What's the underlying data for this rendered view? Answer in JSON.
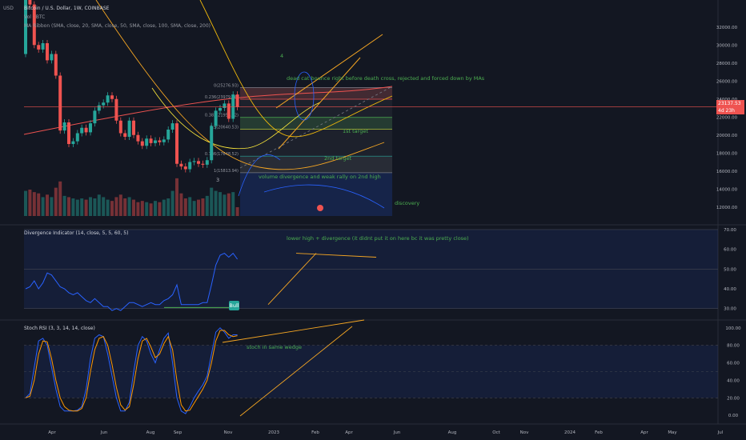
{
  "header": {
    "symbol_line": "Bitcoin / U.S. Dollar, 1W, COINBASE",
    "vol_line": "Vol · BTC",
    "ma_line": "MA Ribbon (SMA, close, 20, SMA, close, 50, SMA, close, 100, SMA, close, 200)",
    "currency": "USD"
  },
  "price_tag": {
    "price": "23137.53",
    "countdown": "4d 23h"
  },
  "annotations": {
    "wave_4": "4",
    "wave_3": "3",
    "dead_cat": "dead cat bounce right before death cross, rejected and forced down by MAs",
    "first_target": "1st target",
    "second_target": "2nd target",
    "volume_div": "volume divergence and weak rally on 2nd high",
    "discovery": "discovery",
    "lower_high": "lower high + divergence (it didnt put it on here bc it was pretty close)",
    "stoch_wedge": "stoch in same wedge"
  },
  "fib_labels": [
    "0(25276.93)",
    "0.236(23979.16)",
    "0.382(21956.42)",
    "0.5(20640.53)",
    "0.786(17648.52)",
    "1(15813.94)"
  ],
  "divergence_panel": {
    "title": "Divergence Indicator (14, close, 5, 5, 60, 5)",
    "bull_label": "Bull"
  },
  "stoch_panel": {
    "title": "Stoch RSI (3, 3, 14, 14, close)"
  },
  "x_axis": {
    "labels": [
      "Apr",
      "Jun",
      "Aug",
      "Sep",
      "Nov",
      "2023",
      "Feb",
      "Apr",
      "Jun",
      "Aug",
      "Oct",
      "Nov",
      "2024",
      "Feb",
      "Apr",
      "May",
      "Jul"
    ]
  },
  "colors": {
    "up": "#26a69a",
    "down": "#ef5350",
    "annotation": "#4caf50",
    "trendline": "#f5a623",
    "divergence_line": "#2962ff"
  },
  "chart_data": [
    {
      "type": "candlestick",
      "title": "Bitcoin / U.S. Dollar, 1W, COINBASE",
      "ylim": [
        11000,
        35000
      ],
      "y_ticks": [
        12000,
        14000,
        16000,
        18000,
        20000,
        22000,
        24000,
        26000,
        28000,
        30000,
        32000
      ],
      "candles": [
        {
          "o": 29000,
          "c": 37500
        },
        {
          "o": 37500,
          "c": 34500
        },
        {
          "o": 34500,
          "c": 30000
        },
        {
          "o": 30000,
          "c": 29500
        },
        {
          "o": 29500,
          "c": 30200
        },
        {
          "o": 30200,
          "c": 28300
        },
        {
          "o": 28300,
          "c": 29000
        },
        {
          "o": 29000,
          "c": 26600
        },
        {
          "o": 26600,
          "c": 20500
        },
        {
          "o": 20500,
          "c": 21400
        },
        {
          "o": 21400,
          "c": 19000
        },
        {
          "o": 19000,
          "c": 19300
        },
        {
          "o": 19300,
          "c": 20200
        },
        {
          "o": 20200,
          "c": 20800
        },
        {
          "o": 20800,
          "c": 20300
        },
        {
          "o": 20300,
          "c": 21300
        },
        {
          "o": 21300,
          "c": 22700
        },
        {
          "o": 22700,
          "c": 23300
        },
        {
          "o": 23300,
          "c": 23600
        },
        {
          "o": 23600,
          "c": 24400
        },
        {
          "o": 24400,
          "c": 24000
        },
        {
          "o": 24000,
          "c": 21600
        },
        {
          "o": 21600,
          "c": 20200
        },
        {
          "o": 20200,
          "c": 19800
        },
        {
          "o": 19800,
          "c": 21600
        },
        {
          "o": 21600,
          "c": 20000
        },
        {
          "o": 20000,
          "c": 19300
        },
        {
          "o": 19300,
          "c": 18800
        },
        {
          "o": 18800,
          "c": 19600
        },
        {
          "o": 19600,
          "c": 19100
        },
        {
          "o": 19100,
          "c": 19400
        },
        {
          "o": 19400,
          "c": 19200
        },
        {
          "o": 19200,
          "c": 19500
        },
        {
          "o": 19500,
          "c": 20600
        },
        {
          "o": 20600,
          "c": 21300
        },
        {
          "o": 21300,
          "c": 16800
        },
        {
          "o": 16800,
          "c": 16500
        },
        {
          "o": 16500,
          "c": 16200
        },
        {
          "o": 16200,
          "c": 17000
        },
        {
          "o": 17000,
          "c": 17100
        },
        {
          "o": 17100,
          "c": 16800
        },
        {
          "o": 16800,
          "c": 16700
        },
        {
          "o": 16700,
          "c": 17200
        },
        {
          "o": 17200,
          "c": 21000
        },
        {
          "o": 21000,
          "c": 22700
        },
        {
          "o": 22700,
          "c": 23000
        },
        {
          "o": 23000,
          "c": 23500
        },
        {
          "o": 23500,
          "c": 21800
        },
        {
          "o": 21800,
          "c": 24500
        },
        {
          "o": 24500,
          "c": 23100
        }
      ],
      "volume": [
        40,
        42,
        38,
        36,
        30,
        34,
        30,
        45,
        55,
        32,
        30,
        28,
        26,
        28,
        26,
        30,
        28,
        34,
        30,
        26,
        24,
        30,
        34,
        28,
        30,
        26,
        22,
        24,
        22,
        20,
        24,
        22,
        26,
        28,
        40,
        60,
        36,
        28,
        30,
        24,
        26,
        28,
        32,
        45,
        40,
        38,
        34,
        36,
        38,
        14
      ],
      "moving_averages": [
        "SMA 20",
        "SMA 50",
        "SMA 100",
        "SMA 200"
      ]
    },
    {
      "type": "line",
      "title": "Divergence Indicator (14, close, 5, 5, 60, 5)",
      "ylim": [
        25,
        72
      ],
      "y_ticks": [
        30,
        40,
        50,
        60,
        70
      ],
      "series": [
        {
          "values": [
            40,
            41,
            44,
            40,
            43,
            48,
            47,
            44,
            41,
            40,
            38,
            37,
            38,
            36,
            34,
            33,
            35,
            33,
            31,
            31,
            29,
            30,
            29,
            31,
            33,
            33,
            32,
            31,
            32,
            33,
            32,
            32,
            34,
            35,
            37,
            42,
            32,
            32,
            32,
            32,
            32,
            33,
            33,
            42,
            52,
            57,
            58,
            56,
            58,
            55
          ]
        }
      ]
    },
    {
      "type": "line",
      "title": "Stoch RSI (3, 3, 14, 14, close)",
      "ylim": [
        -8,
        108
      ],
      "y_ticks": [
        0,
        20,
        40,
        60,
        80,
        100
      ],
      "series": [
        {
          "values": [
            20,
            25,
            55,
            85,
            88,
            80,
            55,
            30,
            10,
            5,
            5,
            5,
            6,
            10,
            30,
            65,
            88,
            92,
            90,
            70,
            45,
            20,
            5,
            5,
            15,
            50,
            80,
            90,
            85,
            70,
            60,
            75,
            88,
            94,
            60,
            20,
            5,
            2,
            10,
            20,
            28,
            35,
            45,
            70,
            95,
            100,
            95,
            88,
            92,
            92
          ]
        },
        {
          "values": [
            20,
            22,
            40,
            70,
            85,
            84,
            65,
            40,
            20,
            10,
            6,
            5,
            5,
            8,
            20,
            50,
            75,
            88,
            90,
            80,
            58,
            32,
            12,
            6,
            10,
            35,
            65,
            85,
            88,
            78,
            66,
            70,
            82,
            90,
            75,
            40,
            12,
            5,
            6,
            14,
            22,
            30,
            40,
            60,
            85,
            97,
            97,
            92,
            90,
            91
          ]
        }
      ]
    }
  ]
}
